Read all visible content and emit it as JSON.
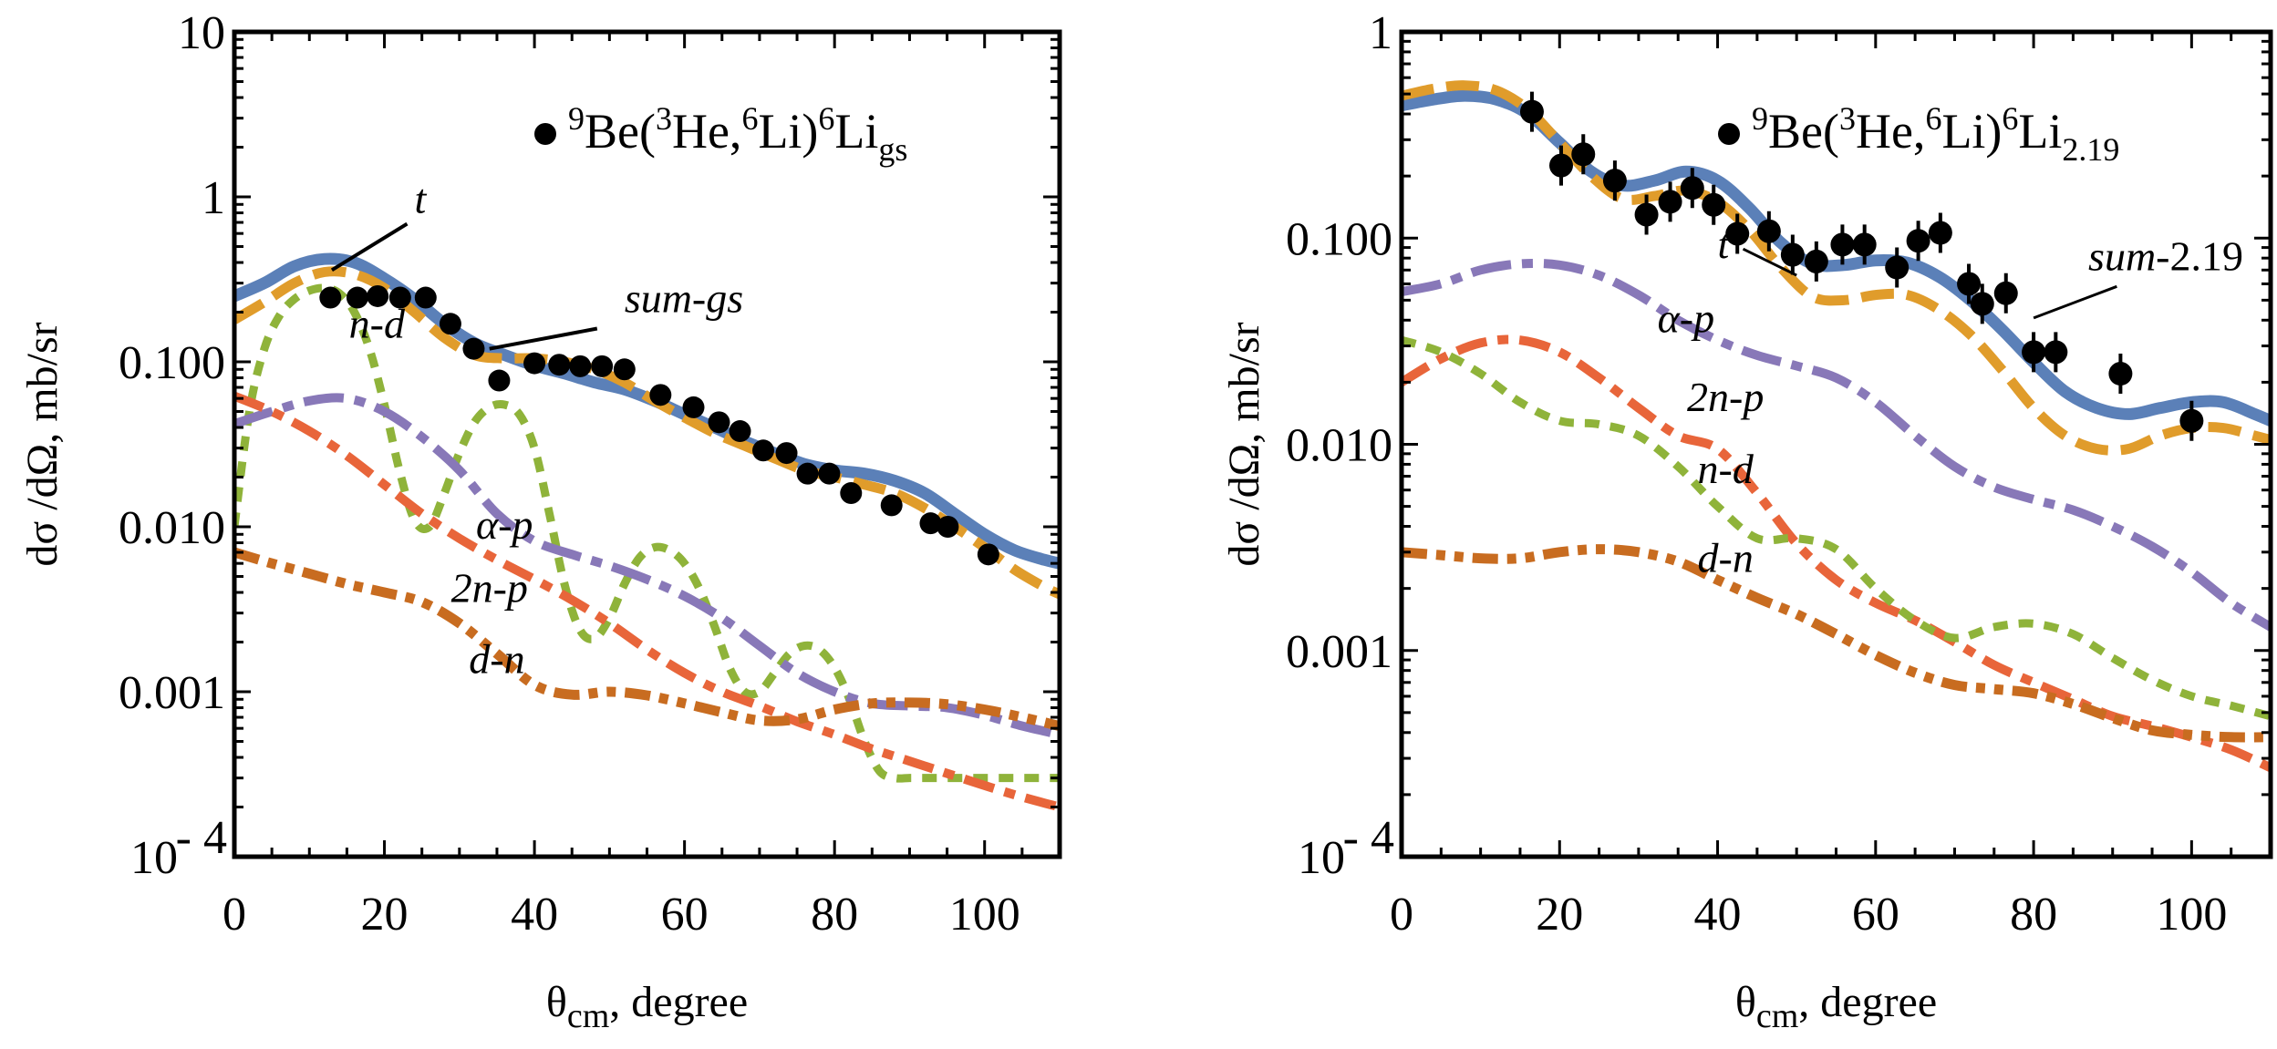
{
  "chart_data": [
    {
      "type": "line",
      "panel": "left",
      "title": "",
      "xlabel": "θcm, degree",
      "xlabel_main": "θ",
      "xlabel_sub": "cm",
      "xlabel_rest": ", degree",
      "ylabel": "dσ /dΩ, mb/sr",
      "xlim": [
        0,
        110
      ],
      "ylim": [
        0.0001,
        10
      ],
      "yscale": "log",
      "xticks": [
        0,
        20,
        40,
        60,
        80,
        100
      ],
      "xtick_labels": [
        "0",
        "20",
        "40",
        "60",
        "80",
        "100"
      ],
      "yticks": [
        10,
        1,
        0.1,
        0.01,
        0.001,
        0.0001
      ],
      "ytick_labels": [
        "10",
        "1",
        "0.100",
        "0.010",
        "0.001",
        "10"
      ],
      "ytick_exponent_label": "- 4",
      "legend": {
        "marker": "filled-circle",
        "text_parts": [
          "9",
          "Be(",
          "3",
          "He,",
          "6",
          "Li)",
          "6",
          "Li",
          "gs"
        ],
        "placement": "top-right"
      },
      "series": [
        {
          "name": "sum-gs",
          "style": "solid",
          "color": "#5b80b8",
          "x": [
            0,
            4,
            8,
            12,
            16,
            20,
            24,
            28,
            32,
            36,
            40,
            44,
            48,
            52,
            56,
            60,
            64,
            68,
            72,
            76,
            80,
            84,
            88,
            92,
            96,
            100,
            104,
            108,
            110
          ],
          "y": [
            0.25,
            0.3,
            0.38,
            0.42,
            0.4,
            0.32,
            0.24,
            0.17,
            0.13,
            0.11,
            0.095,
            0.085,
            0.075,
            0.068,
            0.058,
            0.048,
            0.04,
            0.033,
            0.028,
            0.024,
            0.022,
            0.021,
            0.019,
            0.016,
            0.012,
            0.009,
            0.0072,
            0.0063,
            0.006
          ]
        },
        {
          "name": "t",
          "style": "dashed",
          "color": "#e09c2b",
          "x": [
            0,
            4,
            8,
            12,
            16,
            20,
            24,
            28,
            32,
            36,
            40,
            44,
            48,
            52,
            56,
            60,
            64,
            68,
            72,
            76,
            80,
            84,
            88,
            92,
            96,
            100,
            104,
            108,
            110
          ],
          "y": [
            0.18,
            0.23,
            0.3,
            0.35,
            0.34,
            0.28,
            0.2,
            0.14,
            0.11,
            0.105,
            0.105,
            0.1,
            0.09,
            0.075,
            0.058,
            0.046,
            0.037,
            0.031,
            0.026,
            0.022,
            0.02,
            0.018,
            0.016,
            0.013,
            0.01,
            0.0075,
            0.0055,
            0.0043,
            0.0039
          ]
        },
        {
          "name": "n-d",
          "style": "dotted-dash",
          "color": "#8fb33a",
          "x": [
            0,
            2,
            4,
            6,
            8,
            10,
            12,
            14,
            16,
            18,
            20,
            22,
            24,
            26,
            28,
            30,
            32,
            34,
            36,
            38,
            40,
            42,
            44,
            46,
            48,
            50,
            52,
            54,
            56,
            58,
            60,
            62,
            64,
            66,
            68,
            70,
            72,
            74,
            76,
            78,
            80,
            82,
            84,
            86,
            88,
            90,
            92,
            94,
            96,
            98,
            100,
            102,
            104,
            106,
            108,
            110
          ],
          "y": [
            0.01,
            0.05,
            0.12,
            0.19,
            0.24,
            0.27,
            0.28,
            0.26,
            0.2,
            0.12,
            0.055,
            0.022,
            0.011,
            0.01,
            0.016,
            0.028,
            0.043,
            0.053,
            0.055,
            0.048,
            0.03,
            0.012,
            0.0045,
            0.0024,
            0.0021,
            0.0028,
            0.0045,
            0.0065,
            0.0075,
            0.0072,
            0.006,
            0.0042,
            0.0025,
            0.0014,
            0.001,
            0.001,
            0.0013,
            0.0017,
            0.0019,
            0.0018,
            0.0014,
            0.0009,
            0.0005,
            0.00033,
            0.0003,
            0.0003,
            0.0003,
            0.0003,
            0.0003,
            0.0003,
            0.0003,
            0.0003,
            0.0003,
            0.0003,
            0.0003,
            0.0003
          ]
        },
        {
          "name": "α-p",
          "style": "long-dash-dot",
          "color": "#8878b8",
          "x": [
            0,
            5,
            10,
            15,
            20,
            25,
            30,
            35,
            40,
            45,
            50,
            55,
            60,
            65,
            70,
            75,
            80,
            85,
            90,
            95,
            100,
            105,
            110
          ],
          "y": [
            0.042,
            0.05,
            0.058,
            0.06,
            0.05,
            0.035,
            0.022,
            0.012,
            0.0082,
            0.0068,
            0.0058,
            0.0048,
            0.0038,
            0.0028,
            0.0019,
            0.0013,
            0.001,
            0.00085,
            0.00082,
            0.0008,
            0.00072,
            0.00062,
            0.00055
          ]
        },
        {
          "name": "2n-p",
          "style": "dash-dot",
          "color": "#e8653a",
          "x": [
            0,
            5,
            10,
            15,
            20,
            25,
            30,
            35,
            40,
            45,
            50,
            55,
            60,
            65,
            70,
            75,
            80,
            85,
            90,
            95,
            100,
            105,
            110
          ],
          "y": [
            0.062,
            0.05,
            0.038,
            0.027,
            0.018,
            0.012,
            0.0085,
            0.0063,
            0.0048,
            0.0036,
            0.0026,
            0.0018,
            0.0013,
            0.001,
            0.00082,
            0.00066,
            0.00055,
            0.00045,
            0.00038,
            0.00032,
            0.00027,
            0.00023,
            0.0002
          ]
        },
        {
          "name": "d-n",
          "style": "dash-dot-dot",
          "color": "#c86c20",
          "x": [
            0,
            5,
            10,
            15,
            20,
            25,
            30,
            35,
            40,
            45,
            50,
            55,
            60,
            65,
            70,
            75,
            80,
            85,
            90,
            95,
            100,
            105,
            110
          ],
          "y": [
            0.007,
            0.006,
            0.0052,
            0.0045,
            0.004,
            0.0035,
            0.0026,
            0.0017,
            0.0011,
            0.00096,
            0.001,
            0.00095,
            0.00085,
            0.00075,
            0.00067,
            0.00068,
            0.00078,
            0.00085,
            0.00086,
            0.00084,
            0.00078,
            0.0007,
            0.00062
          ]
        }
      ],
      "points": {
        "name": "9Be(3He,6Li)6Li gs",
        "x": [
          12.8,
          16.4,
          19.1,
          22.1,
          25.5,
          28.8,
          31.9,
          35.3,
          40.0,
          43.3,
          46.1,
          49.0,
          52.0,
          56.8,
          61.2,
          64.6,
          67.4,
          70.5,
          73.6,
          76.4,
          79.3,
          82.2,
          87.6,
          92.8,
          95.1,
          100.5
        ],
        "y": [
          0.245,
          0.245,
          0.25,
          0.245,
          0.245,
          0.17,
          0.12,
          0.077,
          0.098,
          0.096,
          0.094,
          0.094,
          0.09,
          0.063,
          0.053,
          0.043,
          0.038,
          0.029,
          0.028,
          0.021,
          0.021,
          0.016,
          0.0135,
          0.0105,
          0.01,
          0.0068
        ]
      },
      "annotations": [
        {
          "text": "t",
          "x": 24,
          "y": 0.8,
          "arrow_to_x": 13,
          "arrow_to_y": 0.36
        },
        {
          "text": "sum-gs",
          "x": 52,
          "y": 0.2,
          "arrow_to_x": 34,
          "arrow_to_y": 0.12
        },
        {
          "text": "n-d",
          "x": 19,
          "y": 0.14
        },
        {
          "text": "α-p",
          "x": 36,
          "y": 0.0085
        },
        {
          "text": "2n-p",
          "x": 34,
          "y": 0.0035
        },
        {
          "text": "d-n",
          "x": 35,
          "y": 0.0013
        }
      ]
    },
    {
      "type": "line",
      "panel": "right",
      "title": "",
      "xlabel": "θcm, degree",
      "xlabel_main": "θ",
      "xlabel_sub": "cm",
      "xlabel_rest": ", degree",
      "ylabel": "dσ /dΩ, mb/sr",
      "xlim": [
        0,
        110
      ],
      "ylim": [
        0.0001,
        1
      ],
      "yscale": "log",
      "xticks": [
        0,
        20,
        40,
        60,
        80,
        100
      ],
      "xtick_labels": [
        "0",
        "20",
        "40",
        "60",
        "80",
        "100"
      ],
      "yticks": [
        1,
        0.1,
        0.01,
        0.001,
        0.0001
      ],
      "ytick_labels": [
        "1",
        "0.100",
        "0.010",
        "0.001",
        "10"
      ],
      "ytick_exponent_label": "- 4",
      "legend": {
        "marker": "filled-circle",
        "text_parts": [
          "9",
          "Be(",
          "3",
          "He,",
          "6",
          "Li)",
          "6",
          "Li",
          "2.19"
        ],
        "placement": "top-right"
      },
      "series": [
        {
          "name": "sum-2.19",
          "style": "solid",
          "color": "#5b80b8",
          "x": [
            0,
            4,
            8,
            12,
            16,
            20,
            24,
            28,
            32,
            36,
            40,
            44,
            48,
            52,
            56,
            60,
            64,
            68,
            72,
            76,
            80,
            84,
            88,
            92,
            96,
            100,
            104,
            108,
            110
          ],
          "y": [
            0.44,
            0.47,
            0.49,
            0.47,
            0.4,
            0.29,
            0.21,
            0.18,
            0.19,
            0.21,
            0.19,
            0.14,
            0.095,
            0.075,
            0.074,
            0.078,
            0.076,
            0.065,
            0.05,
            0.036,
            0.025,
            0.018,
            0.015,
            0.014,
            0.015,
            0.016,
            0.016,
            0.014,
            0.013
          ]
        },
        {
          "name": "t",
          "style": "dashed",
          "color": "#e09c2b",
          "x": [
            0,
            4,
            8,
            12,
            16,
            20,
            24,
            28,
            32,
            36,
            40,
            44,
            48,
            52,
            56,
            60,
            64,
            68,
            72,
            76,
            80,
            84,
            88,
            92,
            96,
            100,
            104,
            108,
            110
          ],
          "y": [
            0.49,
            0.53,
            0.55,
            0.52,
            0.42,
            0.29,
            0.2,
            0.155,
            0.16,
            0.17,
            0.15,
            0.11,
            0.072,
            0.052,
            0.05,
            0.053,
            0.053,
            0.045,
            0.034,
            0.023,
            0.015,
            0.011,
            0.0095,
            0.0095,
            0.011,
            0.012,
            0.012,
            0.011,
            0.0105
          ]
        },
        {
          "name": "α-p",
          "style": "long-dash-dot",
          "color": "#8878b8",
          "x": [
            0,
            5,
            10,
            15,
            20,
            25,
            30,
            35,
            40,
            45,
            50,
            55,
            60,
            65,
            70,
            75,
            80,
            85,
            90,
            95,
            100,
            105,
            110
          ],
          "y": [
            0.055,
            0.06,
            0.07,
            0.075,
            0.074,
            0.066,
            0.053,
            0.04,
            0.032,
            0.027,
            0.024,
            0.021,
            0.016,
            0.011,
            0.0078,
            0.0062,
            0.0054,
            0.0048,
            0.004,
            0.0032,
            0.0024,
            0.0017,
            0.0013
          ]
        },
        {
          "name": "2n-p",
          "style": "dash-dot",
          "color": "#e8653a",
          "x": [
            0,
            5,
            10,
            15,
            20,
            25,
            30,
            35,
            40,
            45,
            50,
            55,
            60,
            65,
            70,
            75,
            80,
            85,
            90,
            95,
            100,
            105,
            110
          ],
          "y": [
            0.02,
            0.026,
            0.031,
            0.032,
            0.028,
            0.021,
            0.015,
            0.011,
            0.0095,
            0.0058,
            0.0033,
            0.0022,
            0.0017,
            0.0014,
            0.0011,
            0.00085,
            0.0007,
            0.00058,
            0.00048,
            0.00043,
            0.00038,
            0.00033,
            0.00027
          ]
        },
        {
          "name": "n-d",
          "style": "dotted-dash",
          "color": "#8fb33a",
          "x": [
            0,
            5,
            10,
            15,
            20,
            25,
            30,
            35,
            40,
            45,
            50,
            55,
            60,
            65,
            70,
            75,
            80,
            85,
            90,
            95,
            100,
            105,
            110
          ],
          "y": [
            0.032,
            0.028,
            0.022,
            0.016,
            0.013,
            0.0125,
            0.011,
            0.0078,
            0.005,
            0.0035,
            0.0035,
            0.0031,
            0.002,
            0.0014,
            0.00115,
            0.0013,
            0.00135,
            0.0012,
            0.00092,
            0.00072,
            0.0006,
            0.00054,
            0.00048
          ]
        },
        {
          "name": "d-n",
          "style": "dash-dot-dot",
          "color": "#c86c20",
          "x": [
            0,
            5,
            10,
            15,
            20,
            25,
            30,
            35,
            40,
            45,
            50,
            55,
            60,
            65,
            70,
            75,
            80,
            85,
            90,
            95,
            100,
            105,
            110
          ],
          "y": [
            0.003,
            0.0029,
            0.0028,
            0.0028,
            0.003,
            0.0031,
            0.003,
            0.0027,
            0.0022,
            0.0018,
            0.0015,
            0.0012,
            0.00095,
            0.00078,
            0.00068,
            0.00065,
            0.00062,
            0.00055,
            0.00047,
            0.00041,
            0.00039,
            0.00038,
            0.00038
          ]
        }
      ],
      "points": {
        "name": "9Be(3He,6Li)6Li 2.19",
        "x": [
          16.5,
          20.2,
          23.0,
          27.0,
          31.0,
          34.0,
          36.8,
          39.5,
          42.5,
          46.5,
          49.5,
          52.5,
          55.8,
          58.6,
          62.7,
          65.4,
          68.2,
          71.8,
          73.5,
          76.5,
          80.0,
          82.8,
          91.0,
          100.0
        ],
        "y": [
          0.41,
          0.225,
          0.255,
          0.19,
          0.13,
          0.15,
          0.175,
          0.145,
          0.105,
          0.108,
          0.083,
          0.077,
          0.093,
          0.093,
          0.072,
          0.097,
          0.106,
          0.06,
          0.048,
          0.054,
          0.028,
          0.028,
          0.022,
          0.013
        ]
      },
      "annotations": [
        {
          "text": "t",
          "x": 40,
          "y": 0.08,
          "arrow_to_x": 50,
          "arrow_to_y": 0.066
        },
        {
          "text": "sum-2.19",
          "x": 94,
          "y": 0.07,
          "arrow_to_x": 80,
          "arrow_to_y": 0.041
        },
        {
          "text": "α-p",
          "x": 36,
          "y": 0.035
        },
        {
          "text": "2n-p",
          "x": 41,
          "y": 0.0145
        },
        {
          "text": "n-d",
          "x": 41,
          "y": 0.0065
        },
        {
          "text": "d-n",
          "x": 41,
          "y": 0.0024
        }
      ]
    }
  ]
}
